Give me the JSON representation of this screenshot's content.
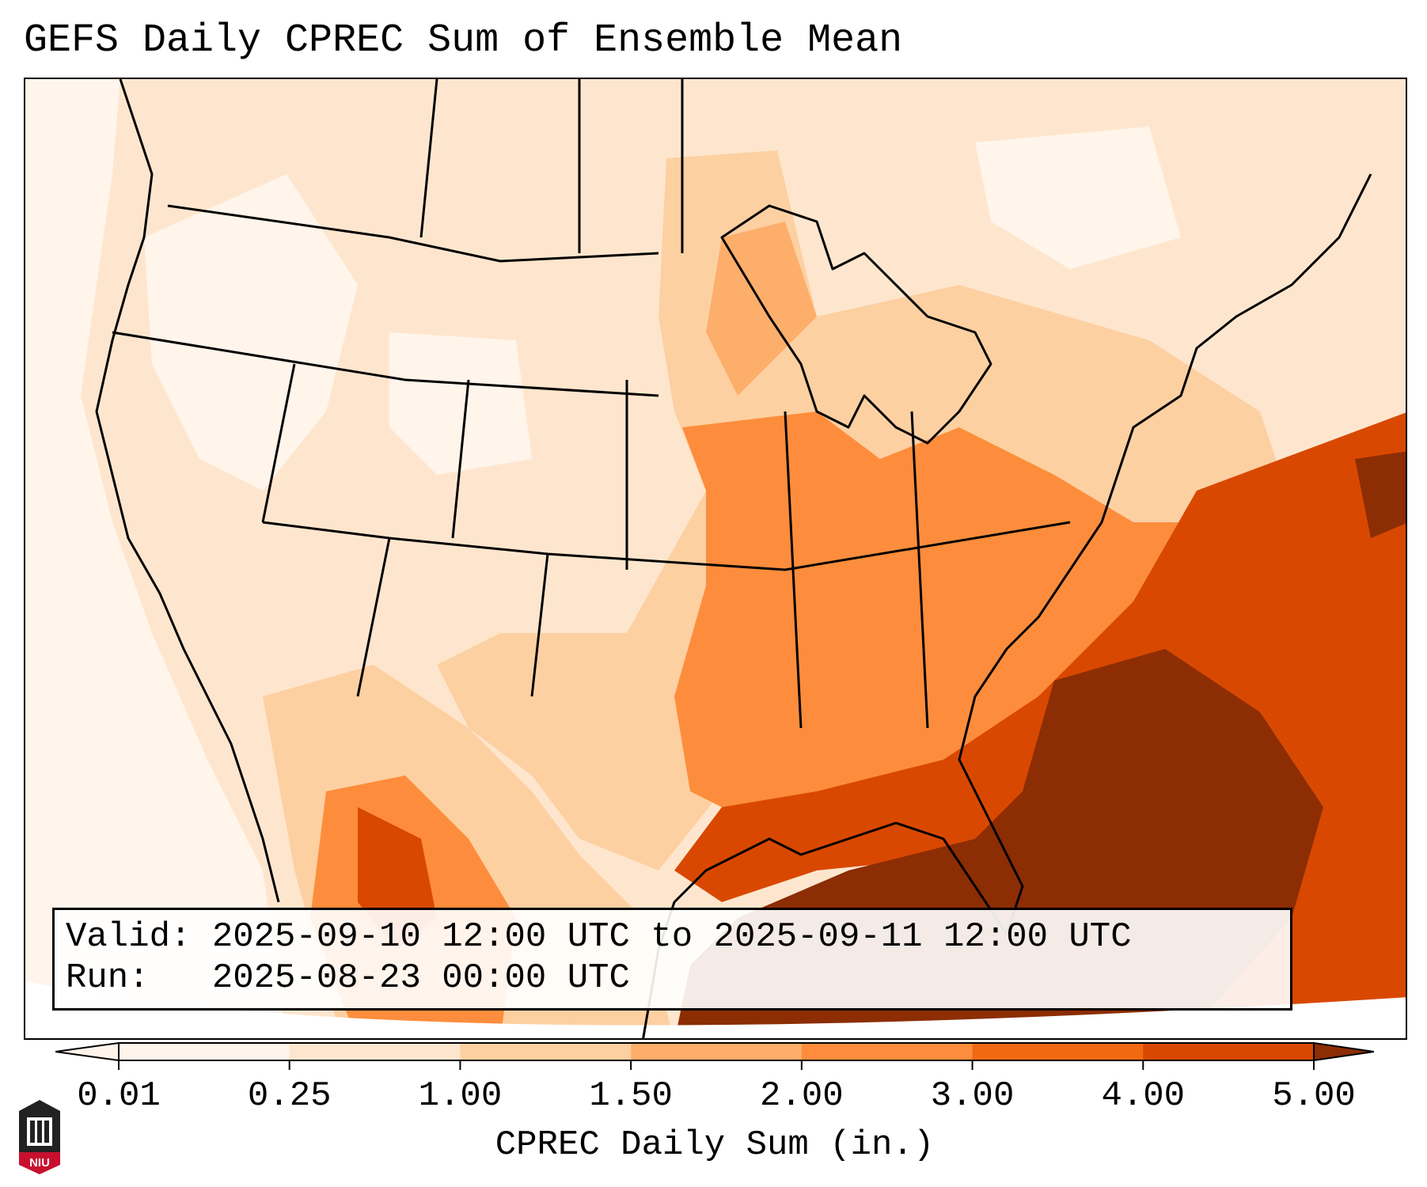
{
  "title": "GEFS Daily CPREC Sum of Ensemble Mean",
  "info": {
    "valid_line": "Valid: 2025-09-10 12:00 UTC to 2025-09-11 12:00 UTC",
    "run_line": "Run:   2025-08-23 00:00 UTC"
  },
  "colorbar": {
    "label": "CPREC Daily Sum (in.)",
    "levels": [
      "0.01",
      "0.25",
      "1.00",
      "1.50",
      "2.00",
      "3.00",
      "4.00",
      "5.00"
    ],
    "colors": [
      "#fff5eb",
      "#fee6ce",
      "#fdd0a2",
      "#fdae6b",
      "#fd8d3c",
      "#f16913",
      "#d94801",
      "#8c2d04"
    ],
    "extend": "both"
  },
  "logo": {
    "text": "NIU",
    "colors": {
      "red": "#c8102e",
      "dark": "#222222"
    }
  },
  "map_colors": {
    "land_light": "#fee6ce",
    "pale": "#fff5eb",
    "mid": "#fdd0a2",
    "orange": "#fd8d3c",
    "deep_orange": "#d94801",
    "dark": "#8c2d04",
    "outline": "#000000"
  }
}
